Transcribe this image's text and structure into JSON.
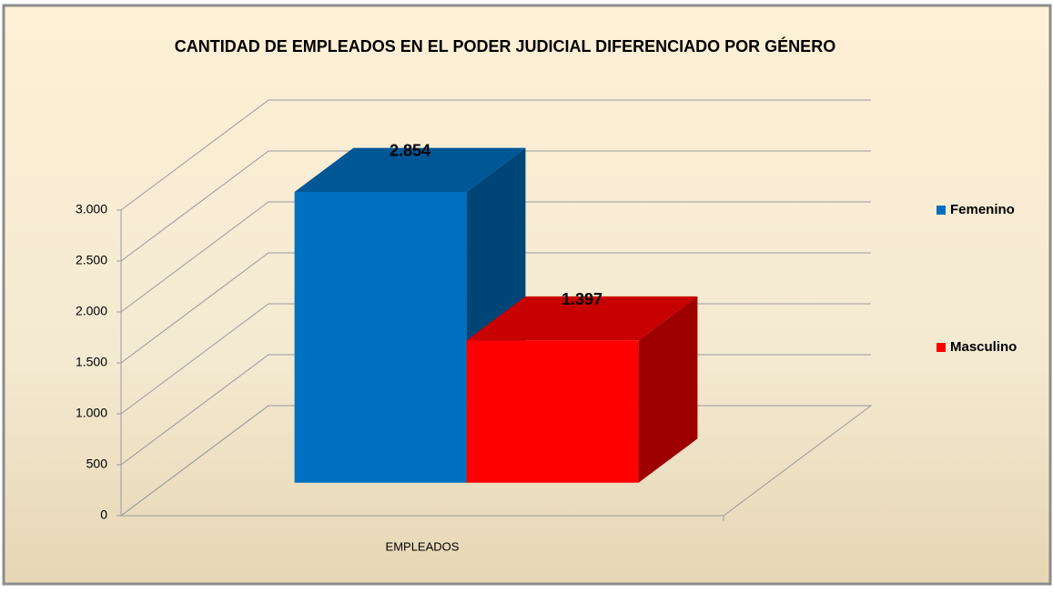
{
  "chart_data": {
    "type": "bar3d",
    "title": "CANTIDAD DE EMPLEADOS EN EL PODER JUDICIAL DIFERENCIADO POR GÉNERO",
    "categories": [
      "EMPLEADOS"
    ],
    "series": [
      {
        "name": "Femenino",
        "color": "#0070c0",
        "values": [
          2854
        ],
        "value_labels": [
          "2.854"
        ]
      },
      {
        "name": "Masculino",
        "color": "#ff0000",
        "values": [
          1397
        ],
        "value_labels": [
          "1.397"
        ]
      }
    ],
    "ylim": [
      0,
      3000
    ],
    "yticks": [
      0,
      500,
      {
        "value": 1000,
        "label": "1.000"
      },
      {
        "value": 1500,
        "label": "1.500"
      },
      {
        "value": 2000,
        "label": "2.000"
      },
      {
        "value": 2500,
        "label": "2.500"
      },
      {
        "value": 3000,
        "label": "3.000"
      }
    ],
    "grid": true,
    "legend": "right"
  }
}
